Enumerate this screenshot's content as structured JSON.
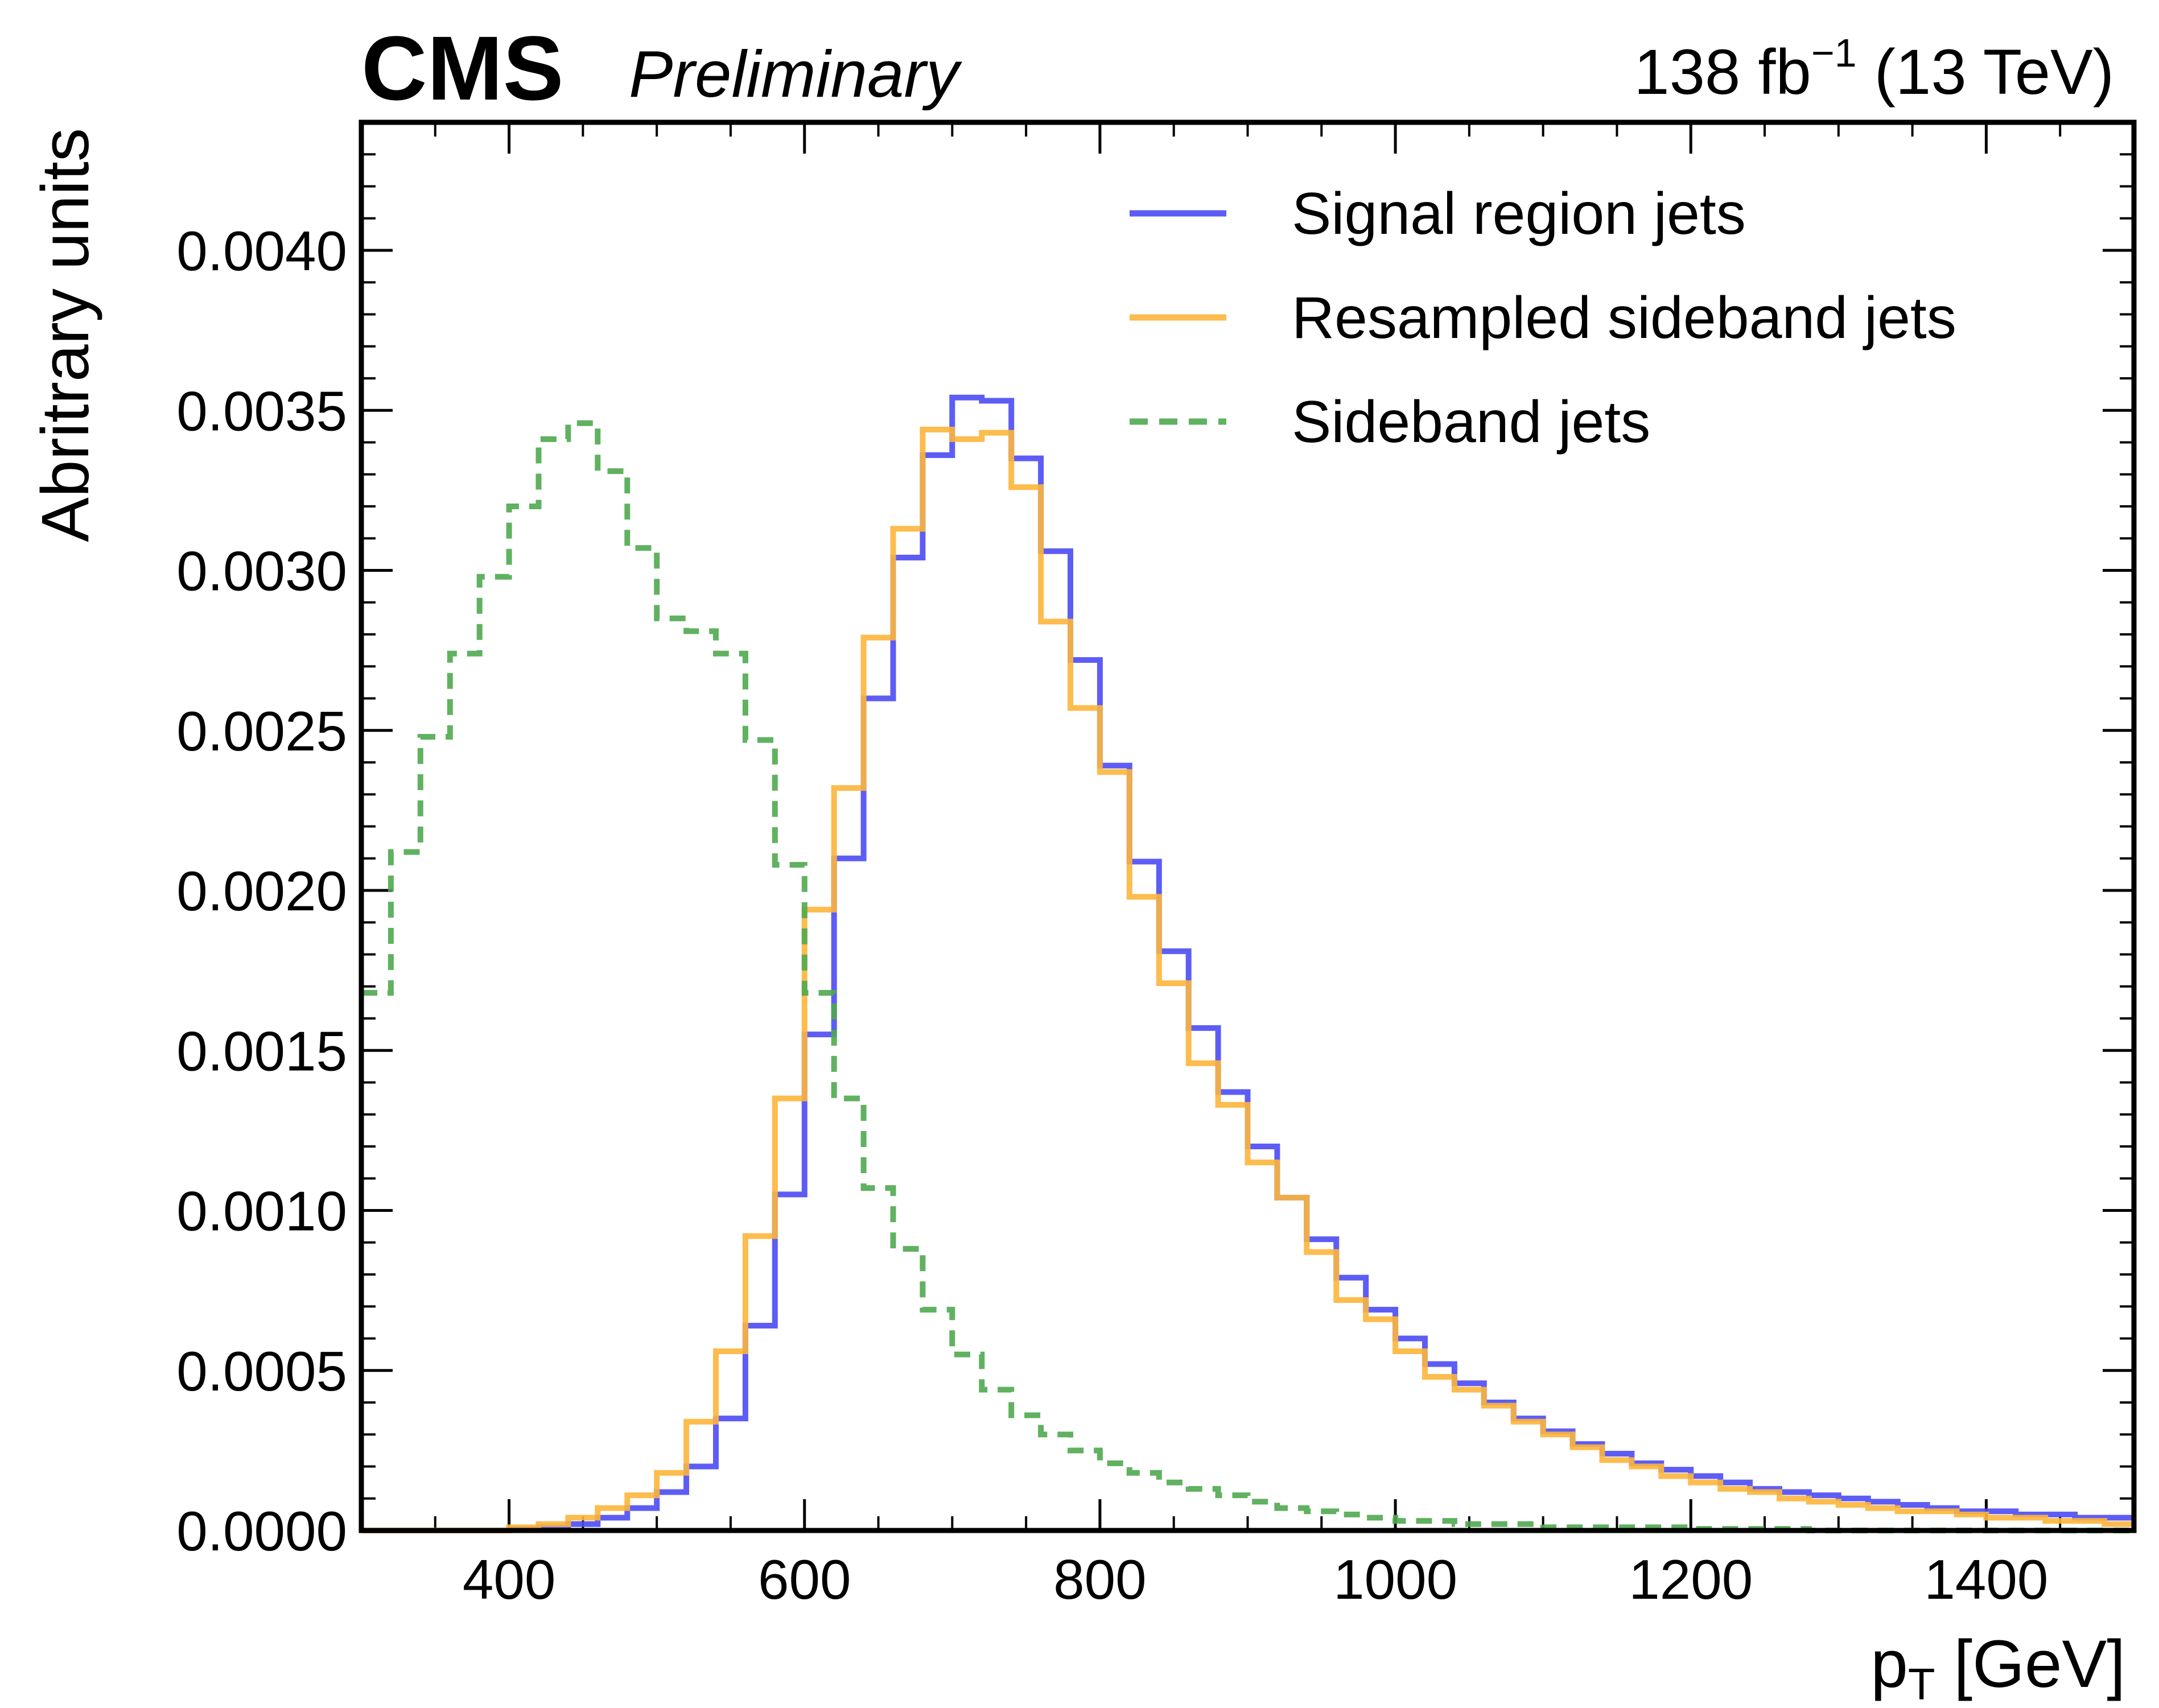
{
  "header": {
    "experiment": "CMS",
    "status": "Preliminary",
    "lumi_prefix": "138 fb",
    "lumi_exponent": "−1",
    "lumi_suffix": " (13 TeV)"
  },
  "chart_data": {
    "type": "line",
    "title": "",
    "xlabel_main": "p",
    "xlabel_sub": "T",
    "xlabel_unit": " [GeV]",
    "ylabel": "Abritrary units",
    "xlim": [
      300,
      1500
    ],
    "ylim": [
      0,
      0.0044
    ],
    "x_ticks": [
      400,
      600,
      800,
      1000,
      1200,
      1400
    ],
    "x_tick_labels": [
      "400",
      "600",
      "800",
      "1000",
      "1200",
      "1400"
    ],
    "y_ticks": [
      0,
      0.0005,
      0.001,
      0.0015,
      0.002,
      0.0025,
      0.003,
      0.0035,
      0.004
    ],
    "y_tick_labels": [
      "0.0000",
      "0.0005",
      "0.0010",
      "0.0015",
      "0.0020",
      "0.0025",
      "0.0030",
      "0.0035",
      "0.0040"
    ],
    "x_minor_step": 50,
    "y_minor_step": 0.0001,
    "grid": false,
    "legend_position": "top-right",
    "bin_edges_start": 300,
    "bin_width": 20,
    "series": [
      {
        "name": "Signal region jets",
        "color": "#4b4bf5",
        "dashed": false,
        "values": [
          0,
          0,
          0,
          0,
          0,
          5e-06,
          1e-05,
          2e-05,
          4e-05,
          7e-05,
          0.00012,
          0.0002,
          0.00035,
          0.00064,
          0.00105,
          0.00155,
          0.0021,
          0.0026,
          0.00304,
          0.00336,
          0.00354,
          0.00353,
          0.00335,
          0.00306,
          0.00272,
          0.00239,
          0.00209,
          0.00181,
          0.00157,
          0.00137,
          0.0012,
          0.00104,
          0.00091,
          0.00079,
          0.00069,
          0.0006,
          0.00052,
          0.00046,
          0.0004,
          0.00035,
          0.00031,
          0.00027,
          0.00024,
          0.00021,
          0.00019,
          0.00017,
          0.00015,
          0.00013,
          0.00012,
          0.00011,
          0.0001,
          9e-05,
          8e-05,
          7e-05,
          6e-05,
          6e-05,
          5e-05,
          5e-05,
          4e-05,
          4e-05
        ]
      },
      {
        "name": "Resampled sideband jets",
        "color": "#fdb53b",
        "dashed": false,
        "values": [
          0,
          0,
          0,
          0,
          0,
          1e-05,
          2e-05,
          4e-05,
          7e-05,
          0.00011,
          0.00018,
          0.00034,
          0.00056,
          0.00092,
          0.00135,
          0.00194,
          0.00232,
          0.00279,
          0.00313,
          0.00344,
          0.00341,
          0.00343,
          0.00326,
          0.00284,
          0.00257,
          0.00237,
          0.00198,
          0.00171,
          0.00146,
          0.00133,
          0.00115,
          0.00104,
          0.00087,
          0.00072,
          0.00066,
          0.00056,
          0.00048,
          0.00044,
          0.00039,
          0.00034,
          0.0003,
          0.00026,
          0.00022,
          0.0002,
          0.00017,
          0.00015,
          0.00013,
          0.00012,
          0.0001,
          9e-05,
          8e-05,
          7e-05,
          6e-05,
          6e-05,
          5e-05,
          4e-05,
          4e-05,
          3e-05,
          3e-05,
          2e-05
        ]
      },
      {
        "name": "Sideband jets",
        "color": "#4fa84f",
        "dashed": true,
        "values": [
          0.00168,
          0.00212,
          0.00248,
          0.00274,
          0.00298,
          0.0032,
          0.00341,
          0.00346,
          0.00331,
          0.00307,
          0.00285,
          0.00281,
          0.00274,
          0.00247,
          0.00208,
          0.00168,
          0.00135,
          0.00107,
          0.00088,
          0.00069,
          0.00055,
          0.00044,
          0.00036,
          0.0003,
          0.00025,
          0.00021,
          0.00018,
          0.00015,
          0.00013,
          0.00011,
          9e-05,
          7e-05,
          6e-05,
          5e-05,
          4e-05,
          3e-05,
          3e-05,
          2e-05,
          2e-05,
          2e-05,
          1e-05,
          1e-05,
          1e-05,
          1e-05,
          1e-05,
          5e-06,
          5e-06,
          5e-06,
          5e-06,
          0,
          0,
          0,
          0,
          0,
          0,
          0,
          0,
          0,
          0,
          0
        ]
      }
    ]
  }
}
